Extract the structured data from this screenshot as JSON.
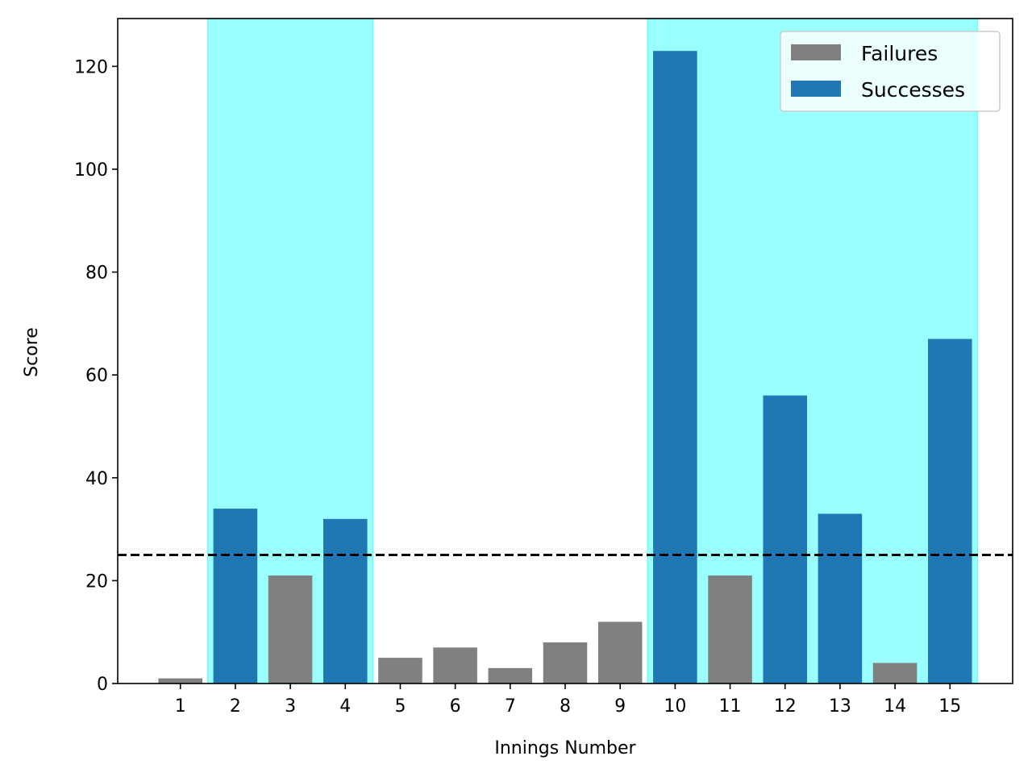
{
  "chart_data": {
    "type": "bar",
    "title": "",
    "xlabel": "Innings Number",
    "ylabel": "Score",
    "categories": [
      1,
      2,
      3,
      4,
      5,
      6,
      7,
      8,
      9,
      10,
      11,
      12,
      13,
      14,
      15
    ],
    "values": [
      1,
      34,
      21,
      32,
      5,
      7,
      3,
      8,
      12,
      123,
      21,
      56,
      33,
      4,
      67
    ],
    "series": [
      {
        "name": "Failures",
        "color": "#808080",
        "x": [
          1,
          3,
          5,
          6,
          7,
          8,
          9,
          11,
          14
        ],
        "values": [
          1,
          21,
          5,
          7,
          3,
          8,
          12,
          21,
          4
        ]
      },
      {
        "name": "Successes",
        "color": "#1f77b4",
        "x": [
          2,
          4,
          10,
          12,
          13,
          15
        ],
        "values": [
          34,
          32,
          123,
          56,
          33,
          67
        ]
      }
    ],
    "threshold": {
      "y": 25,
      "style": "dashed",
      "color": "#000000"
    },
    "shaded_spans": [
      {
        "from": 1.5,
        "to": 4.5,
        "color": "#99ffff"
      },
      {
        "from": 9.5,
        "to": 15.5,
        "color": "#99ffff"
      }
    ],
    "xlim": [
      -0.14,
      16.14
    ],
    "ylim": [
      0,
      129.3
    ],
    "xticks": [
      "1",
      "2",
      "3",
      "4",
      "5",
      "6",
      "7",
      "8",
      "9",
      "10",
      "11",
      "12",
      "13",
      "14",
      "15"
    ],
    "yticks": [
      0,
      20,
      40,
      60,
      80,
      100,
      120
    ],
    "grid": false,
    "legend": {
      "position": "top-right",
      "entries": [
        "Failures",
        "Successes"
      ]
    }
  }
}
